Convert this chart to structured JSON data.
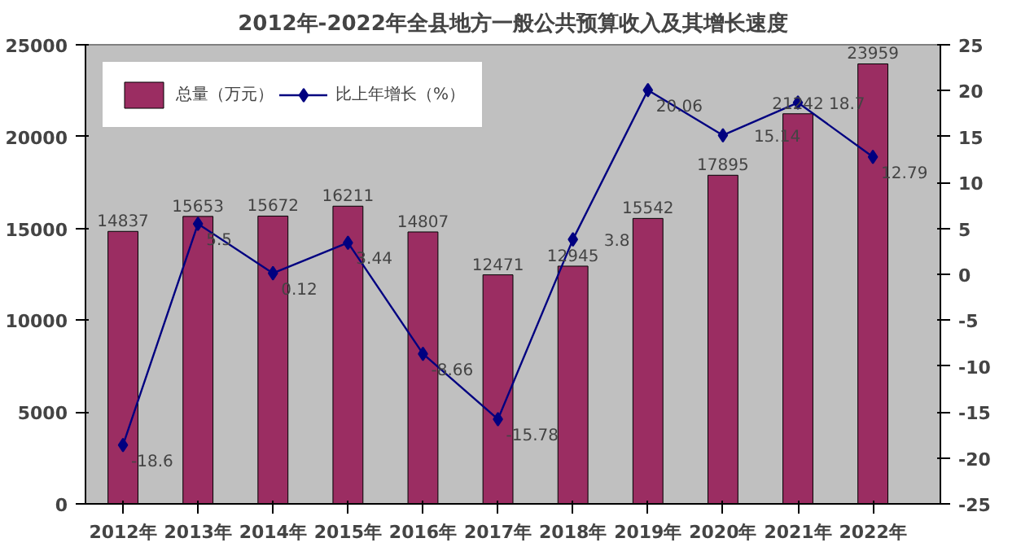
{
  "chart_data": {
    "type": "bar",
    "title": "2012年-2022年全县地方一般公共预算收入及其增长速度",
    "categories": [
      "2012年",
      "2013年",
      "2014年",
      "2015年",
      "2016年",
      "2017年",
      "2018年",
      "2019年",
      "2020年",
      "2021年",
      "2022年"
    ],
    "series": [
      {
        "name": "总量（万元）",
        "color": "#9b2d62",
        "values": [
          14837,
          15653,
          15672,
          16211,
          14807,
          12471,
          12945,
          15542,
          17895,
          21242,
          23959
        ]
      },
      {
        "name": "比上年增长（%）",
        "type": "line",
        "axis": "y2",
        "color": "#000080",
        "marker": "diamond",
        "values": [
          -18.6,
          5.5,
          0.12,
          3.44,
          -8.66,
          -15.78,
          3.8,
          20.06,
          15.14,
          18.7,
          12.79
        ]
      }
    ],
    "ylim": [
      0,
      25000
    ],
    "yticks": [
      0,
      5000,
      10000,
      15000,
      20000,
      25000
    ],
    "y2lim": [
      -25,
      25
    ],
    "y2ticks": [
      -25,
      -20,
      -15,
      -10,
      -5,
      0,
      5,
      10,
      15,
      20,
      25
    ],
    "data_labels": true,
    "legend": "top left",
    "grid": false
  }
}
